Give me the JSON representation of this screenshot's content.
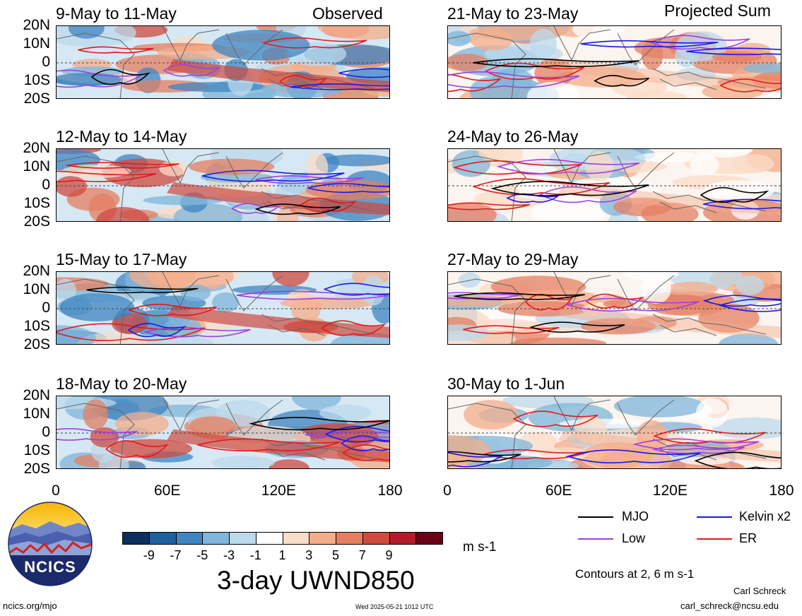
{
  "corner_labels": {
    "observed": "Observed",
    "projected": "Projected Sum"
  },
  "panels": [
    {
      "id": "p1",
      "title": "9-May to 11-May",
      "col": 0,
      "row": 0
    },
    {
      "id": "p2",
      "title": "12-May to 14-May",
      "col": 0,
      "row": 1
    },
    {
      "id": "p3",
      "title": "15-May to 17-May",
      "col": 0,
      "row": 2
    },
    {
      "id": "p4",
      "title": "18-May to 20-May",
      "col": 0,
      "row": 3
    },
    {
      "id": "p5",
      "title": "21-May to 23-May",
      "col": 1,
      "row": 0
    },
    {
      "id": "p6",
      "title": "24-May to 26-May",
      "col": 1,
      "row": 1
    },
    {
      "id": "p7",
      "title": "27-May to 29-May",
      "col": 1,
      "row": 2
    },
    {
      "id": "p8",
      "title": "30-May to 1-Jun",
      "col": 1,
      "row": 3
    }
  ],
  "lat_labels": [
    "20N",
    "10N",
    "0",
    "10S",
    "20S"
  ],
  "lon_labels": [
    "0",
    "60E",
    "120E",
    "180"
  ],
  "colorbar": {
    "colors": [
      "#0b2f5e",
      "#1f5fa0",
      "#3f86c1",
      "#7fb6da",
      "#bcd9ec",
      "#ffffff",
      "#fbdcc7",
      "#f4ad8b",
      "#e47f62",
      "#cf4a3f",
      "#b21d2b",
      "#6b0016"
    ],
    "tick_labels": [
      "-9",
      "-7",
      "-5",
      "-3",
      "-1",
      "1",
      "3",
      "5",
      "7",
      "9"
    ],
    "units": "m s-1",
    "title": "3-day UWND850"
  },
  "legend": {
    "items": [
      {
        "label": "MJO",
        "color": "#000000"
      },
      {
        "label": "Kelvin x2",
        "color": "#1a1ae6"
      },
      {
        "label": "Low",
        "color": "#a040e0"
      },
      {
        "label": "ER",
        "color": "#e01a1a"
      }
    ],
    "note": "Contours at 2, 6 m s-1"
  },
  "logo": {
    "text": "NCICS"
  },
  "footer": {
    "url": "ncics.org/mjo",
    "timestamp": "Wed 2025-05-21 1012 UTC",
    "author": "Carl Schreck",
    "email": "carl_schreck@ncsu.edu"
  }
}
